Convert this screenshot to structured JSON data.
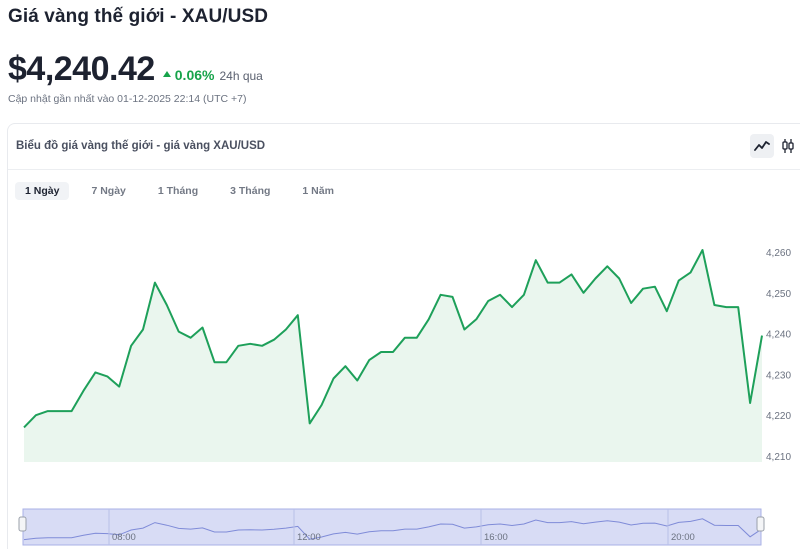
{
  "page": {
    "title": "Giá vàng thế giới - XAU/USD",
    "price": "$4,240.42",
    "change_value": "0.06%",
    "change_period": "24h qua",
    "updated": "Cập nhật gần nhất vào 01-12-2025 22:14 (UTC +7)"
  },
  "card": {
    "title": "Biểu đồ giá vàng thế giới - giá vàng XAU/USD",
    "chart_types": [
      {
        "name": "line-chart-icon",
        "active": true
      },
      {
        "name": "candlestick-icon",
        "active": false
      }
    ],
    "ranges": [
      {
        "label": "1 Ngày",
        "active": true
      },
      {
        "label": "7 Ngày",
        "active": false
      },
      {
        "label": "1 Tháng",
        "active": false
      },
      {
        "label": "3 Tháng",
        "active": false
      },
      {
        "label": "1 Năm",
        "active": false
      }
    ]
  },
  "colors": {
    "line": "#1ea05a",
    "fill": "#eaf6ee",
    "positive": "#16a34a",
    "navigator_bg": "#d8dcf5",
    "navigator_border": "#a9b1e6"
  },
  "chart_data": {
    "type": "area",
    "y_ticks": [
      "4,210",
      "4,220",
      "4,230",
      "4,240",
      "4,250",
      "4,260"
    ],
    "ylim": [
      4210,
      4260
    ],
    "x_ticks": [
      "08:00",
      "12:00",
      "16:00",
      "20:00"
    ],
    "series": [
      {
        "values": [
          4217,
          4220,
          4221,
          4221,
          4221,
          4226,
          4230.5,
          4229.5,
          4227,
          4237,
          4241,
          4252.5,
          4247,
          4240.5,
          4239,
          4241.5,
          4233,
          4233,
          4237,
          4237.5,
          4237,
          4238.5,
          4241,
          4244.5,
          4218,
          4222.5,
          4229,
          4232,
          4228.5,
          4233.5,
          4235.5,
          4235.5,
          4239,
          4239,
          4243.5,
          4249.5,
          4249,
          4241,
          4243.5,
          4248,
          4249.5,
          4246.5,
          4249.5,
          4258,
          4252.5,
          4252.5,
          4254.5,
          4250,
          4253.5,
          4256.5,
          4253.5,
          4247.5,
          4251,
          4251.5,
          4245.5,
          4253,
          4255,
          4260.5,
          4247,
          4246.5,
          4246.5,
          4223,
          4239.5
        ]
      }
    ]
  }
}
